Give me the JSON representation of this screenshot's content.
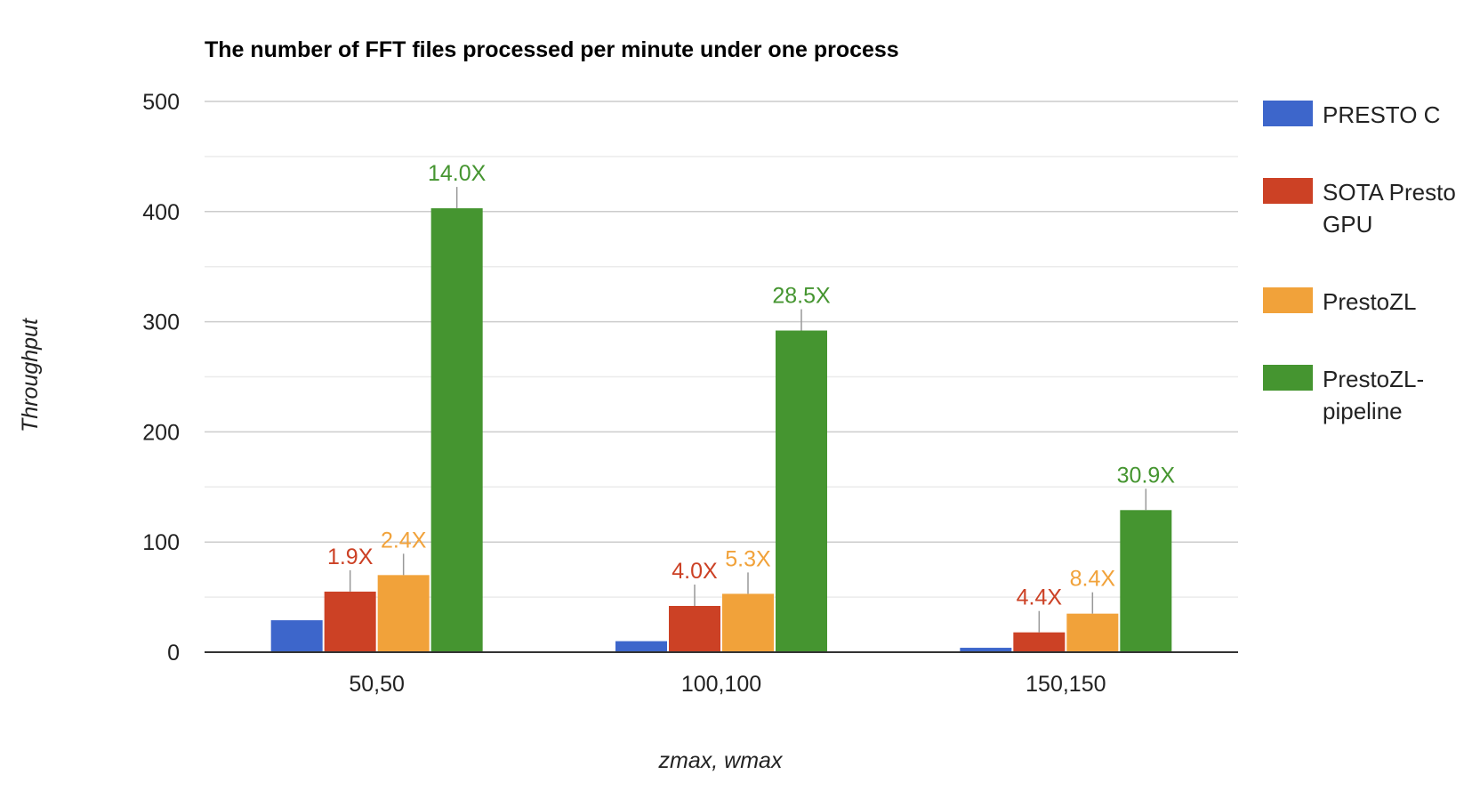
{
  "chart_data": {
    "type": "bar",
    "title": "The number of FFT files processed per minute under one process",
    "xlabel": "zmax, wmax",
    "ylabel": "Throughput",
    "categories": [
      "50,50",
      "100,100",
      "150,150"
    ],
    "ylim": [
      0,
      500
    ],
    "yticks": [
      "0",
      "100",
      "200",
      "300",
      "400",
      "500"
    ],
    "grid": true,
    "legend_position": "right",
    "series": [
      {
        "name": "PRESTO C",
        "color": "#3d66cb",
        "values": [
          29,
          10,
          4
        ],
        "annotations": [
          "",
          "",
          ""
        ]
      },
      {
        "name": "SOTA Presto GPU",
        "color": "#cc4125",
        "values": [
          55,
          42,
          18
        ],
        "annotations": [
          "1.9X",
          "4.0X",
          "4.4X"
        ]
      },
      {
        "name": "PrestoZL",
        "color": "#f1a23a",
        "values": [
          70,
          53,
          35
        ],
        "annotations": [
          "2.4X",
          "5.3X",
          "8.4X"
        ]
      },
      {
        "name": "PrestoZL-pipeline",
        "color": "#459530",
        "values": [
          403,
          292,
          129
        ],
        "annotations": [
          "14.0X",
          "28.5X",
          "30.9X"
        ]
      }
    ],
    "legend_lines": [
      [
        "PRESTO C"
      ],
      [
        "SOTA Presto",
        "GPU"
      ],
      [
        "PrestoZL"
      ],
      [
        "PrestoZL-",
        "pipeline"
      ]
    ]
  }
}
